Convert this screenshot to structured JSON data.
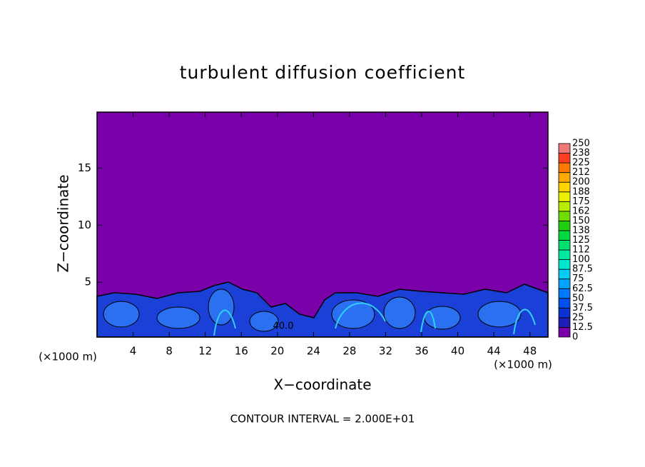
{
  "chart_data": {
    "type": "contour",
    "title": "turbulent diffusion coefficient",
    "xlabel": "X−coordinate",
    "ylabel": "Z−coordinate",
    "xlim": [
      0,
      50
    ],
    "xticks": [
      4,
      8,
      12,
      16,
      20,
      24,
      28,
      32,
      36,
      40,
      44,
      48
    ],
    "ylim": [
      0.2,
      19.9
    ],
    "yticks": [
      5,
      10,
      15
    ],
    "x_unit_left": "(×1000 m)",
    "x_unit_right": "(×1000 m)",
    "footnote": "CONTOUR INTERVAL = 2.000E+01",
    "contour_label": "40.0",
    "levels": [
      0,
      12.5,
      25,
      37.5,
      50,
      62.5,
      75,
      87.5,
      100,
      112,
      125,
      138,
      150,
      162,
      175,
      188,
      200,
      212,
      225,
      238,
      250
    ],
    "colors": [
      "#7a00aa",
      "#1e1eb4",
      "#0a32d2",
      "#0050ee",
      "#0078ff",
      "#00a4ff",
      "#00ccf4",
      "#00e4d0",
      "#00e8a0",
      "#00e070",
      "#00d840",
      "#20d010",
      "#70dc00",
      "#b8ec00",
      "#ecf000",
      "#ffd400",
      "#ffa800",
      "#ff7800",
      "#ff4020",
      "#f07878"
    ]
  }
}
